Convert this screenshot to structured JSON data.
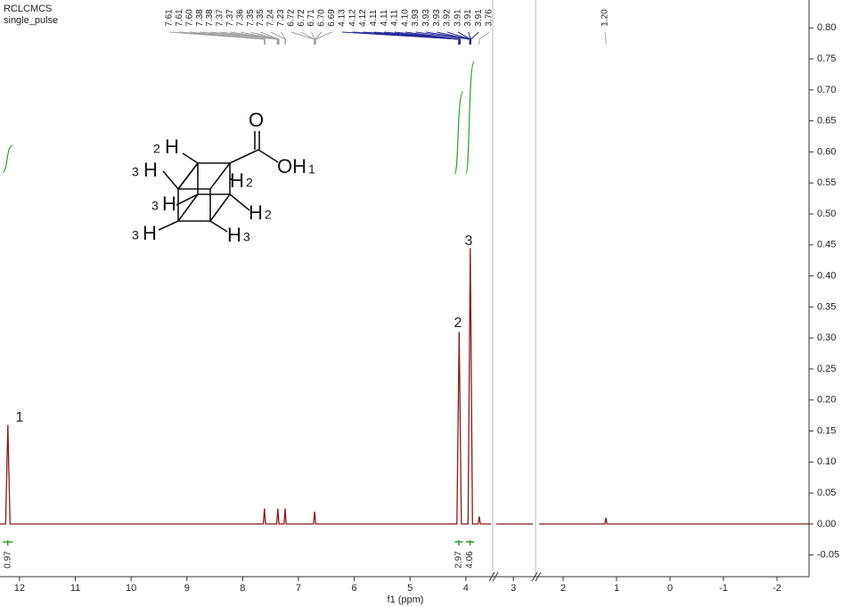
{
  "chart_data": {
    "type": "line",
    "title": "RCLCMCS",
    "subtitle": "single_pulse",
    "x_label": "f1 (ppm)",
    "x_segments": [
      {
        "xlim": [
          12.35,
          3.55
        ]
      },
      {
        "xlim": [
          3.35,
          2.6
        ]
      },
      {
        "xlim": [
          2.45,
          -2.6
        ]
      }
    ],
    "xticks": [
      12,
      11,
      10,
      9,
      8,
      7,
      6,
      5,
      4,
      3,
      2,
      1,
      0,
      -1,
      -2
    ],
    "ylim": [
      -0.085,
      0.845
    ],
    "yticks": [
      {
        "value": 0.8,
        "label": "0.80"
      },
      0.75,
      {
        "value": 0.7,
        "label": "0.70"
      },
      0.65,
      {
        "value": 0.6,
        "label": "0.60"
      },
      0.55,
      {
        "value": 0.5,
        "label": "0.50"
      },
      0.45,
      {
        "value": 0.4,
        "label": "0.40"
      },
      0.35,
      {
        "value": 0.3,
        "label": "0.30"
      },
      0.25,
      {
        "value": 0.2,
        "label": "0.20"
      },
      0.15,
      {
        "value": 0.1,
        "label": "0.10"
      },
      0.05,
      {
        "value": 0,
        "label": "0.00"
      },
      -0.05
    ],
    "series": [
      {
        "color": "#8b1a1a",
        "x": [
          12.35,
          12.25,
          12.21,
          12.17,
          7.63,
          7.61,
          7.59,
          7.39,
          7.37,
          7.35,
          7.26,
          7.24,
          7.22,
          6.73,
          6.71,
          6.69,
          4.16,
          4.12,
          4.08,
          3.96,
          3.92,
          3.88,
          3.78,
          3.76,
          3.74,
          3.55,
          null,
          3.35,
          2.6,
          null,
          2.45,
          1.22,
          1.2,
          1.18,
          -2.6
        ],
        "values": [
          0,
          0,
          0.16,
          0,
          0,
          0.025,
          0,
          0,
          0.025,
          0,
          0,
          0.025,
          0,
          0,
          0.02,
          0,
          0,
          0.31,
          0,
          0,
          0.445,
          0,
          0,
          0.012,
          0,
          0,
          null,
          0,
          0,
          null,
          0,
          0,
          0.01,
          0,
          0
        ]
      }
    ],
    "integrals": [
      {
        "x": [
          12.3,
          12.12
        ],
        "value": 0.97,
        "color": "#2e9e2e",
        "label_color": "#3a3aa0"
      },
      {
        "x": [
          4.2,
          4.05
        ],
        "value": 2.97,
        "color": "#2e9e2e",
        "label_color": "#3a3aa0"
      },
      {
        "x": [
          4.0,
          3.85
        ],
        "value": 4.06,
        "color": "#2e9e2e",
        "label_color": "#3a3aa0"
      }
    ],
    "peak_groups": [
      {
        "color": "#a0a0a0",
        "picks": [
          7.61,
          7.61,
          {
            "value": 7.6,
            "label": "7.60"
          },
          7.38,
          7.38,
          7.37,
          7.37,
          7.36,
          7.35,
          7.35,
          7.24,
          7.23,
          6.72,
          6.72,
          6.71,
          {
            "value": 6.7,
            "label": "6.70"
          },
          6.69
        ]
      },
      {
        "color": "#2a2a9a",
        "picks": [
          4.13,
          4.12,
          4.12,
          4.11,
          4.11,
          4.11,
          {
            "value": 4.1,
            "label": "4.10"
          },
          3.93,
          3.93,
          3.93,
          3.92,
          3.91,
          3.91,
          3.91
        ]
      },
      {
        "color": "#a0a0a0",
        "picks": [
          3.76
        ]
      },
      {
        "color": "#a0a0a0",
        "picks": [
          {
            "value": 1.2,
            "label": "1.20"
          }
        ]
      }
    ],
    "annotations": [
      "1",
      "2",
      "3"
    ],
    "structure": {
      "o": "O",
      "oh": "OH",
      "oh_num": "1",
      "h": [
        "H",
        "H",
        "H",
        "H",
        "H",
        "H",
        "H"
      ],
      "nums": [
        "2",
        "3",
        "3",
        "3",
        "2",
        "2",
        "3"
      ]
    }
  }
}
